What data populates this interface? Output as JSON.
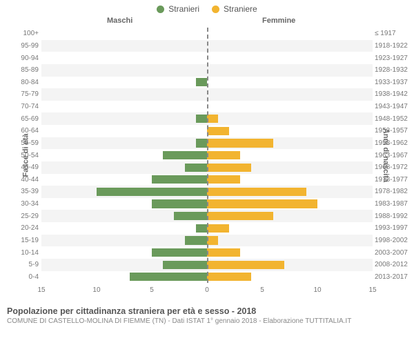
{
  "legend": {
    "male": {
      "label": "Stranieri",
      "color": "#6a9a5b"
    },
    "female": {
      "label": "Straniere",
      "color": "#f2b430"
    }
  },
  "headers": {
    "left": "Maschi",
    "right": "Femmine"
  },
  "axes": {
    "y_left_title": "Fasce di età",
    "y_right_title": "Anni di nascita",
    "x_max": 15,
    "x_ticks": [
      15,
      10,
      5,
      0,
      5,
      10,
      15
    ]
  },
  "colors": {
    "male_bar": "#6a9a5b",
    "female_bar": "#f2b430",
    "center_line": "#888888",
    "row_alt_bg": "#f4f4f4",
    "text": "#666666",
    "background": "#ffffff"
  },
  "rows": [
    {
      "age": "100+",
      "year": "≤ 1917",
      "m": 0,
      "f": 0
    },
    {
      "age": "95-99",
      "year": "1918-1922",
      "m": 0,
      "f": 0
    },
    {
      "age": "90-94",
      "year": "1923-1927",
      "m": 0,
      "f": 0
    },
    {
      "age": "85-89",
      "year": "1928-1932",
      "m": 0,
      "f": 0
    },
    {
      "age": "80-84",
      "year": "1933-1937",
      "m": 1,
      "f": 0
    },
    {
      "age": "75-79",
      "year": "1938-1942",
      "m": 0,
      "f": 0
    },
    {
      "age": "70-74",
      "year": "1943-1947",
      "m": 0,
      "f": 0
    },
    {
      "age": "65-69",
      "year": "1948-1952",
      "m": 1,
      "f": 1
    },
    {
      "age": "60-64",
      "year": "1953-1957",
      "m": 0,
      "f": 2
    },
    {
      "age": "55-59",
      "year": "1958-1962",
      "m": 1,
      "f": 6
    },
    {
      "age": "50-54",
      "year": "1963-1967",
      "m": 4,
      "f": 3
    },
    {
      "age": "45-49",
      "year": "1968-1972",
      "m": 2,
      "f": 4
    },
    {
      "age": "40-44",
      "year": "1973-1977",
      "m": 5,
      "f": 3
    },
    {
      "age": "35-39",
      "year": "1978-1982",
      "m": 10,
      "f": 9
    },
    {
      "age": "30-34",
      "year": "1983-1987",
      "m": 5,
      "f": 10
    },
    {
      "age": "25-29",
      "year": "1988-1992",
      "m": 3,
      "f": 6
    },
    {
      "age": "20-24",
      "year": "1993-1997",
      "m": 1,
      "f": 2
    },
    {
      "age": "15-19",
      "year": "1998-2002",
      "m": 2,
      "f": 1
    },
    {
      "age": "10-14",
      "year": "2003-2007",
      "m": 5,
      "f": 3
    },
    {
      "age": "5-9",
      "year": "2008-2012",
      "m": 4,
      "f": 7
    },
    {
      "age": "0-4",
      "year": "2013-2017",
      "m": 7,
      "f": 4
    }
  ],
  "footer": {
    "title": "Popolazione per cittadinanza straniera per età e sesso - 2018",
    "subtitle": "COMUNE DI CASTELLO-MOLINA DI FIEMME (TN) - Dati ISTAT 1° gennaio 2018 - Elaborazione TUTTITALIA.IT"
  }
}
